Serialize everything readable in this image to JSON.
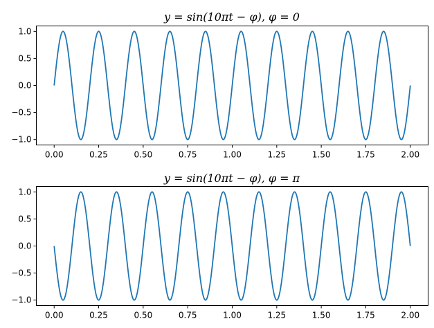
{
  "chart_data": [
    {
      "type": "line",
      "title": "y = sin(10πt − φ), φ = 0",
      "xlabel": "",
      "ylabel": "",
      "xlim": [
        -0.1,
        2.1
      ],
      "ylim": [
        -1.1,
        1.1
      ],
      "x_ticks": [
        "0.00",
        "0.25",
        "0.50",
        "0.75",
        "1.00",
        "1.25",
        "1.50",
        "1.75",
        "2.00"
      ],
      "y_ticks": [
        "1.0",
        "0.5",
        "0.0",
        "−0.5",
        "−1.0"
      ],
      "grid": false,
      "series": [
        {
          "function": "sin(10*pi*t - phi)",
          "phi": 0,
          "t_range": [
            0,
            2
          ],
          "color": "#1f77b4"
        }
      ]
    },
    {
      "type": "line",
      "title": "y = sin(10πt − φ), φ = π",
      "xlabel": "",
      "ylabel": "",
      "xlim": [
        -0.1,
        2.1
      ],
      "ylim": [
        -1.1,
        1.1
      ],
      "x_ticks": [
        "0.00",
        "0.25",
        "0.50",
        "0.75",
        "1.00",
        "1.25",
        "1.50",
        "1.75",
        "2.00"
      ],
      "y_ticks": [
        "1.0",
        "0.5",
        "0.0",
        "−0.5",
        "−1.0"
      ],
      "grid": false,
      "series": [
        {
          "function": "sin(10*pi*t - phi)",
          "phi": 3.14159265,
          "t_range": [
            0,
            2
          ],
          "color": "#1f77b4"
        }
      ]
    }
  ]
}
